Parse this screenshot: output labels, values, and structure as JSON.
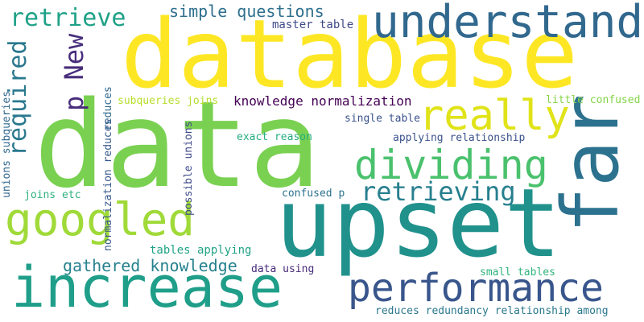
{
  "cloud": {
    "words": [
      {
        "text": "data",
        "color": "#7ad151"
      },
      {
        "text": "database",
        "color": "#fde725"
      },
      {
        "text": "upset",
        "color": "#21918c"
      },
      {
        "text": "increase",
        "color": "#1f9e89"
      },
      {
        "text": "understand",
        "color": "#31688e"
      },
      {
        "text": "far",
        "color": "#2c728e"
      },
      {
        "text": "googled",
        "color": "#a0da39"
      },
      {
        "text": "performance",
        "color": "#39568c"
      },
      {
        "text": "dividing",
        "color": "#4ac16d"
      },
      {
        "text": "really",
        "color": "#e0e318"
      },
      {
        "text": "retrieve",
        "color": "#1fa187"
      },
      {
        "text": "retrieving",
        "color": "#277f8e"
      },
      {
        "text": "required",
        "color": "#2a788e"
      },
      {
        "text": "p New",
        "color": "#472d7b"
      },
      {
        "text": "simple questions",
        "color": "#2e6f8e"
      },
      {
        "text": "gathered knowledge",
        "color": "#26828e"
      },
      {
        "text": "knowledge normalization",
        "color": "#440154"
      },
      {
        "text": "master table",
        "color": "#3e4989"
      },
      {
        "text": "reduces",
        "color": "#31688e"
      },
      {
        "text": "subqueries joins",
        "color": "#b5de2b"
      },
      {
        "text": "normalization reduces",
        "color": "#38598c"
      },
      {
        "text": "little confused",
        "color": "#86d549"
      },
      {
        "text": "single table",
        "color": "#3b528b"
      },
      {
        "text": "exact reason",
        "color": "#25ac82"
      },
      {
        "text": "applying relationship",
        "color": "#3b528b"
      },
      {
        "text": "unions subqueries",
        "color": "#31688e"
      },
      {
        "text": "joins etc",
        "color": "#2db27d"
      },
      {
        "text": "possible unions",
        "color": "#3e4989"
      },
      {
        "text": "confused p",
        "color": "#2c728e"
      },
      {
        "text": "tables applying",
        "color": "#20a386"
      },
      {
        "text": "data using",
        "color": "#472a7a"
      },
      {
        "text": "small tables",
        "color": "#2fb47c"
      },
      {
        "text": "reduces redundancy relationship among",
        "color": "#2a788e"
      }
    ]
  }
}
